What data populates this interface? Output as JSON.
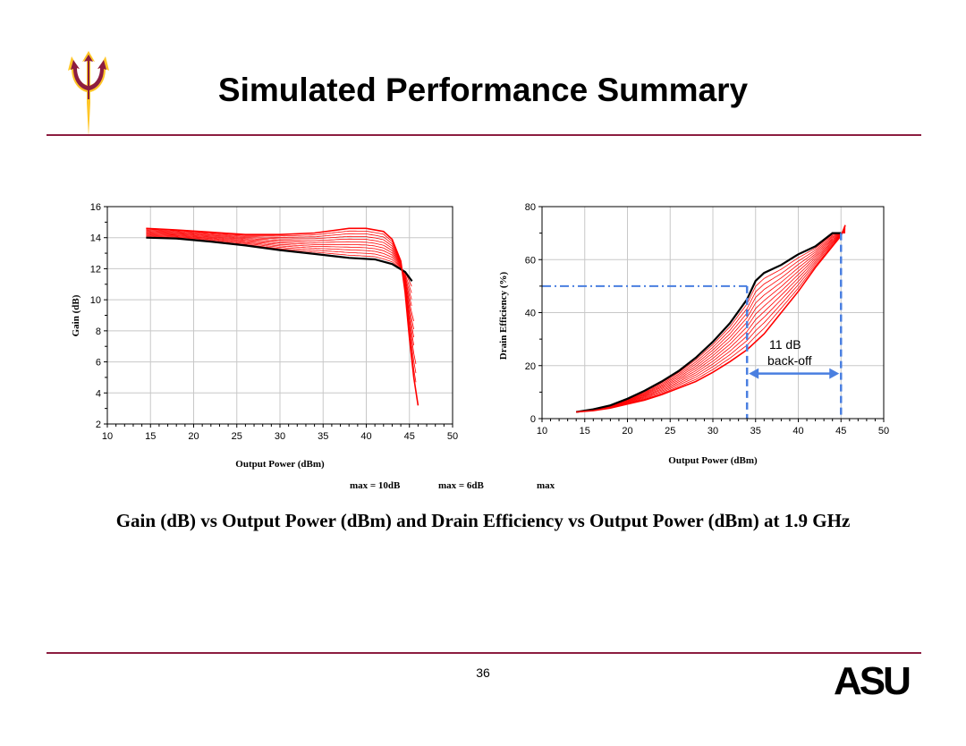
{
  "slide": {
    "title": "Simulated Performance Summary",
    "caption": "Gain (dB) vs Output Power (dBm) and Drain Efficiency vs Output Power (dBm) at 1.9 GHz",
    "ghost_text": [
      "max = 10dB",
      "max = 6dB",
      "max"
    ],
    "page_number": "36",
    "logo_text": "ASU"
  },
  "colors": {
    "maroon": "#8c1d40",
    "gold": "#ffc627",
    "curve": "#ff0000",
    "main_curve": "#000000",
    "annotation": "#4a7fe0"
  },
  "chart_data": [
    {
      "type": "line",
      "xlabel": "Output Power (dBm)",
      "ylabel": "Gain (dB)",
      "xlim": [
        10,
        50
      ],
      "ylim": [
        2,
        16
      ],
      "xticks": [
        10,
        15,
        20,
        25,
        30,
        35,
        40,
        45,
        50
      ],
      "yticks": [
        2,
        4,
        6,
        8,
        10,
        12,
        14,
        16
      ],
      "grid": true,
      "series": [
        {
          "color": "#000000",
          "x": [
            14.5,
            18,
            22,
            26,
            30,
            34,
            38,
            41,
            43,
            44.5,
            45.3
          ],
          "y": [
            14.0,
            13.95,
            13.75,
            13.5,
            13.2,
            12.95,
            12.7,
            12.6,
            12.3,
            11.8,
            11.2
          ]
        },
        {
          "color": "#ff0000",
          "x": [
            14.5,
            18,
            22,
            26,
            30,
            34,
            38,
            40,
            42,
            43,
            44,
            44.5,
            45,
            45.5,
            46
          ],
          "y": [
            14.6,
            14.5,
            14.35,
            14.2,
            14.2,
            14.3,
            14.6,
            14.6,
            14.4,
            13.9,
            12.5,
            10.5,
            7.5,
            5.0,
            3.2
          ]
        }
      ],
      "sweep_curve_count": 12
    },
    {
      "type": "line",
      "xlabel": "Output Power (dBm)",
      "ylabel": "Drain Efficiency (%)",
      "xlim": [
        10,
        50
      ],
      "ylim": [
        0,
        80
      ],
      "xticks": [
        10,
        15,
        20,
        25,
        30,
        35,
        40,
        45,
        50
      ],
      "yticks": [
        0,
        20,
        40,
        60,
        80
      ],
      "grid": true,
      "series": [
        {
          "color": "#000000",
          "x": [
            14,
            16,
            18,
            20,
            22,
            24,
            26,
            28,
            30,
            32,
            34,
            35,
            36,
            38,
            40,
            42,
            44,
            45
          ],
          "y": [
            2.5,
            3.5,
            5,
            7.5,
            10.5,
            14,
            18,
            23,
            29,
            36,
            45,
            52,
            55,
            58,
            62,
            65,
            70,
            70
          ]
        },
        {
          "color": "#ff0000",
          "x": [
            14,
            16,
            18,
            20,
            22,
            24,
            26,
            28,
            30,
            32,
            34,
            36,
            38,
            40,
            42,
            44,
            45,
            45.5
          ],
          "y": [
            2.5,
            3,
            4,
            5.5,
            7,
            9,
            11.5,
            14,
            17.5,
            21.5,
            26,
            32,
            40,
            48,
            57,
            65,
            69,
            73
          ]
        }
      ],
      "sweep_curve_count": 12,
      "annotations": {
        "label_line1": "11 dB",
        "label_line2": "back-off",
        "hline_y": 50,
        "vline_x1": 34,
        "vline_x2": 45,
        "hline_x_start": 10
      }
    }
  ]
}
